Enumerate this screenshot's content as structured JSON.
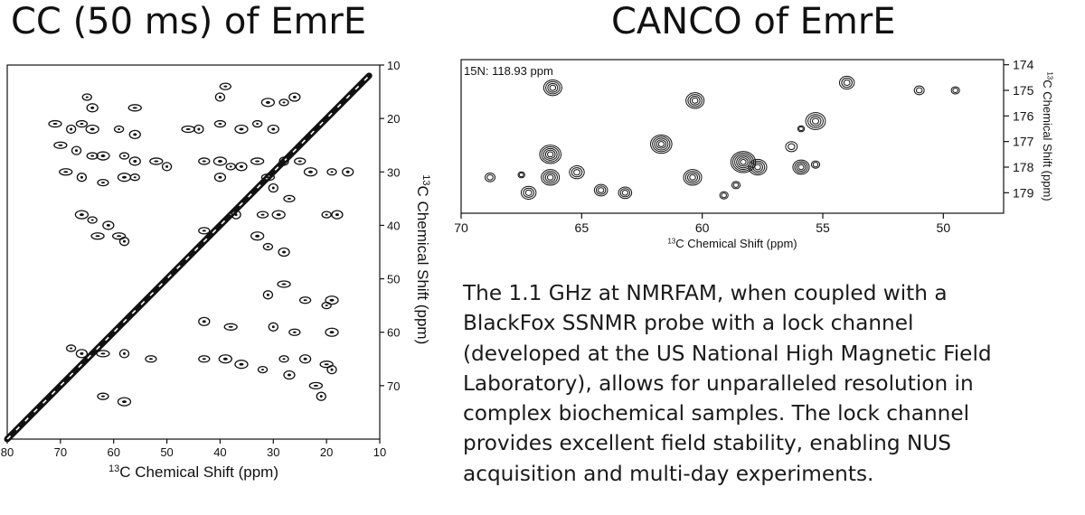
{
  "charts_meta": {
    "cc_title": "CC (50 ms) of EmrE",
    "canco_title": "CANCO of EmrE"
  },
  "caption": "The 1.1 GHz at NMRFAM, when coupled with a\nBlackFox SSNMR probe with a lock channel\n(developed at the US National High Magnetic Field\nLaboratory), allows for unparalleled resolution in\ncomplex biochemical samples. The lock channel\nprovides excellent field stability, enabling NUS\nacquisition and multi-day experiments.",
  "chart_data": [
    {
      "type": "scatter",
      "subtype": "2D NMR contour spectrum",
      "title": "CC (50 ms) of EmrE",
      "xlabel": "13C Chemical Shift (ppm)",
      "ylabel": "13C Chemical Shift (ppm)",
      "xlim": [
        80,
        10
      ],
      "ylim": [
        10,
        80
      ],
      "xticks": [
        80,
        70,
        60,
        50,
        40,
        30,
        20,
        10
      ],
      "yticks": [
        10,
        20,
        30,
        40,
        50,
        60,
        70
      ],
      "diagonal": {
        "from": [
          80,
          80
        ],
        "to": [
          12,
          12
        ]
      },
      "peaks": [
        [
          65,
          16
        ],
        [
          64,
          18
        ],
        [
          56,
          18
        ],
        [
          40,
          16
        ],
        [
          39,
          14
        ],
        [
          31,
          17
        ],
        [
          28,
          17
        ],
        [
          26,
          16
        ],
        [
          71,
          21
        ],
        [
          68,
          22
        ],
        [
          66,
          21
        ],
        [
          64,
          22
        ],
        [
          59,
          22
        ],
        [
          56,
          23
        ],
        [
          46,
          22
        ],
        [
          44,
          22
        ],
        [
          40,
          21
        ],
        [
          36,
          22
        ],
        [
          33,
          21
        ],
        [
          30,
          22
        ],
        [
          70,
          25
        ],
        [
          67,
          26
        ],
        [
          64,
          27
        ],
        [
          62,
          27
        ],
        [
          58,
          27
        ],
        [
          56,
          28
        ],
        [
          52,
          28
        ],
        [
          50,
          29
        ],
        [
          43,
          28
        ],
        [
          40,
          28
        ],
        [
          38,
          29
        ],
        [
          36,
          29
        ],
        [
          33,
          28
        ],
        [
          28,
          28
        ],
        [
          25,
          28
        ],
        [
          23,
          30
        ],
        [
          19,
          30
        ],
        [
          16,
          30
        ],
        [
          69,
          30
        ],
        [
          66,
          31
        ],
        [
          62,
          32
        ],
        [
          58,
          31
        ],
        [
          56,
          31
        ],
        [
          40,
          31
        ],
        [
          31,
          31
        ],
        [
          30,
          33
        ],
        [
          27,
          35
        ],
        [
          66,
          38
        ],
        [
          64,
          39
        ],
        [
          61,
          40
        ],
        [
          59,
          42
        ],
        [
          37,
          38
        ],
        [
          32,
          38
        ],
        [
          29,
          38
        ],
        [
          20,
          38
        ],
        [
          18,
          38
        ],
        [
          63,
          42
        ],
        [
          58,
          43
        ],
        [
          43,
          41
        ],
        [
          33,
          42
        ],
        [
          31,
          44
        ],
        [
          28,
          45
        ],
        [
          28,
          51
        ],
        [
          31,
          53
        ],
        [
          24,
          54
        ],
        [
          19,
          54
        ],
        [
          20,
          55
        ],
        [
          43,
          58
        ],
        [
          38,
          59
        ],
        [
          30,
          59
        ],
        [
          26,
          60
        ],
        [
          19,
          60
        ],
        [
          68,
          63
        ],
        [
          66,
          64
        ],
        [
          62,
          64
        ],
        [
          58,
          64
        ],
        [
          53,
          65
        ],
        [
          39,
          65
        ],
        [
          28,
          65
        ],
        [
          24,
          65
        ],
        [
          20,
          66
        ],
        [
          19,
          67
        ],
        [
          43,
          65
        ],
        [
          36,
          66
        ],
        [
          32,
          67
        ],
        [
          27,
          68
        ],
        [
          22,
          70
        ],
        [
          21,
          72
        ],
        [
          62,
          72
        ],
        [
          58,
          73
        ]
      ]
    },
    {
      "type": "scatter",
      "subtype": "2D NMR contour spectrum",
      "title": "CANCO of EmrE",
      "annotation": "15N: 118.93 ppm",
      "xlabel": "13C Chemical Shift (ppm)",
      "ylabel": "13C Chemical Shift (ppm)",
      "xlim": [
        70,
        47.5
      ],
      "ylim": [
        173.8,
        179.8
      ],
      "xticks": [
        70,
        65,
        60,
        55,
        50
      ],
      "yticks": [
        174,
        175,
        176,
        177,
        178,
        179
      ],
      "peaks": [
        {
          "x": 66.2,
          "y": 174.9,
          "size": 1.0
        },
        {
          "x": 60.3,
          "y": 175.4,
          "size": 1.0
        },
        {
          "x": 54.0,
          "y": 174.7,
          "size": 0.8
        },
        {
          "x": 51.0,
          "y": 175.0,
          "size": 0.5
        },
        {
          "x": 49.5,
          "y": 175.0,
          "size": 0.4
        },
        {
          "x": 55.3,
          "y": 176.2,
          "size": 1.1
        },
        {
          "x": 55.9,
          "y": 176.5,
          "size": 0.3
        },
        {
          "x": 61.7,
          "y": 177.1,
          "size": 1.2
        },
        {
          "x": 66.3,
          "y": 177.5,
          "size": 1.2
        },
        {
          "x": 66.3,
          "y": 178.4,
          "size": 1.0
        },
        {
          "x": 65.2,
          "y": 178.2,
          "size": 0.8
        },
        {
          "x": 58.3,
          "y": 177.8,
          "size": 1.4
        },
        {
          "x": 57.7,
          "y": 178.0,
          "size": 1.0
        },
        {
          "x": 55.9,
          "y": 178.0,
          "size": 0.9
        },
        {
          "x": 56.3,
          "y": 177.2,
          "size": 0.6
        },
        {
          "x": 55.3,
          "y": 177.9,
          "size": 0.4
        },
        {
          "x": 60.4,
          "y": 178.4,
          "size": 1.0
        },
        {
          "x": 64.2,
          "y": 178.9,
          "size": 0.7
        },
        {
          "x": 63.2,
          "y": 179.0,
          "size": 0.7
        },
        {
          "x": 67.2,
          "y": 179.0,
          "size": 0.8
        },
        {
          "x": 68.8,
          "y": 178.4,
          "size": 0.5
        },
        {
          "x": 67.5,
          "y": 178.3,
          "size": 0.3
        },
        {
          "x": 58.6,
          "y": 178.7,
          "size": 0.4
        },
        {
          "x": 59.1,
          "y": 179.1,
          "size": 0.4
        }
      ]
    }
  ]
}
